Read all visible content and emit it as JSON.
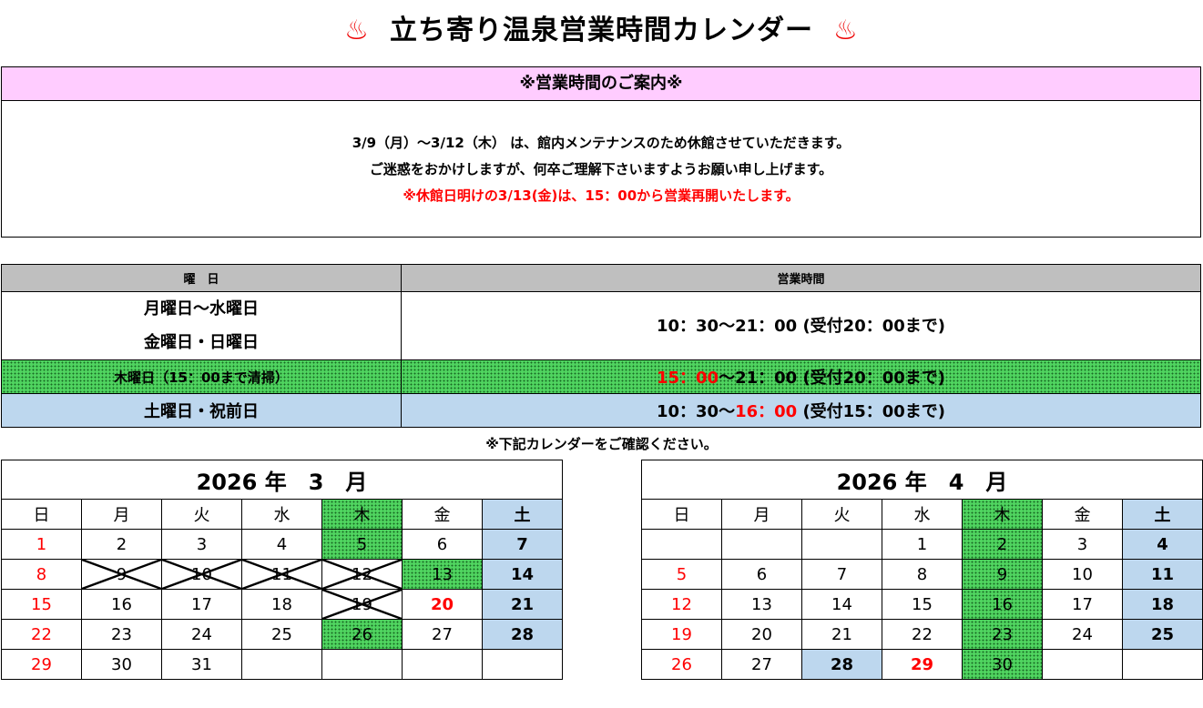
{
  "title": {
    "icon": "hot-spring-icon",
    "glyph": "♨",
    "text": "立ち寄り温泉営業時間カレンダー"
  },
  "notice": {
    "header": "※営業時間のご案内※",
    "line1": "3/9（月）～3/12（木） は、館内メンテナンスのため休館させていただきます。",
    "line2": "ご迷惑をおかけしますが、何卒ご理解下さいますようお願い申し上げます。",
    "line3": "※休館日明けの3/13(金)は、15：00から営業再開いたします。"
  },
  "hours": {
    "col1": "曜　日",
    "col2": "営業時間",
    "row1": {
      "day1": "月曜日～水曜日",
      "day2": "金曜日・日曜日",
      "time": "10：30～21：00 (受付20：00まで)"
    },
    "row2": {
      "day": "木曜日（15：00まで清掃）",
      "time_red": "15：00",
      "time_rest": "～21：00 (受付20：00まで)"
    },
    "row3": {
      "day": "土曜日・祝前日",
      "time_a": "10：30～",
      "time_red": "16：00",
      "time_b": " (受付15：00まで)"
    }
  },
  "note": "※下記カレンダーをご確認ください。",
  "colors": {
    "green": "#4fd35f",
    "blue": "#bdd7ee",
    "pink": "#ffccff",
    "red": "#ff0000"
  },
  "weekdays": [
    "日",
    "月",
    "火",
    "水",
    "木",
    "金",
    "土"
  ],
  "calendars": [
    {
      "title": "2026 年　3　月",
      "weeks": [
        [
          [
            "1",
            "sun"
          ],
          [
            "2",
            ""
          ],
          [
            "3",
            ""
          ],
          [
            "4",
            ""
          ],
          [
            "5",
            "thu"
          ],
          [
            "6",
            ""
          ],
          [
            "7",
            "sat"
          ]
        ],
        [
          [
            "8",
            "sun"
          ],
          [
            "9",
            "x"
          ],
          [
            "10",
            "x"
          ],
          [
            "11",
            "x"
          ],
          [
            "12",
            "x"
          ],
          [
            "13",
            "thu"
          ],
          [
            "14",
            "sat"
          ]
        ],
        [
          [
            "15",
            "sun"
          ],
          [
            "16",
            ""
          ],
          [
            "17",
            ""
          ],
          [
            "18",
            ""
          ],
          [
            "19",
            "x"
          ],
          [
            "20",
            "hol"
          ],
          [
            "21",
            "sat"
          ]
        ],
        [
          [
            "22",
            "sun"
          ],
          [
            "23",
            ""
          ],
          [
            "24",
            ""
          ],
          [
            "25",
            ""
          ],
          [
            "26",
            "thu"
          ],
          [
            "27",
            ""
          ],
          [
            "28",
            "sat"
          ]
        ],
        [
          [
            "29",
            "sun"
          ],
          [
            "30",
            ""
          ],
          [
            "31",
            ""
          ],
          [
            "",
            ""
          ],
          [
            "",
            ""
          ],
          [
            "",
            ""
          ],
          [
            "",
            ""
          ]
        ]
      ]
    },
    {
      "title": "2026 年　4　月",
      "weeks": [
        [
          [
            "",
            ""
          ],
          [
            "",
            ""
          ],
          [
            "",
            ""
          ],
          [
            "1",
            ""
          ],
          [
            "2",
            "thu"
          ],
          [
            "3",
            ""
          ],
          [
            "4",
            "sat"
          ]
        ],
        [
          [
            "5",
            "sun"
          ],
          [
            "6",
            ""
          ],
          [
            "7",
            ""
          ],
          [
            "8",
            ""
          ],
          [
            "9",
            "thu"
          ],
          [
            "10",
            ""
          ],
          [
            "11",
            "sat"
          ]
        ],
        [
          [
            "12",
            "sun"
          ],
          [
            "13",
            ""
          ],
          [
            "14",
            ""
          ],
          [
            "15",
            ""
          ],
          [
            "16",
            "thu"
          ],
          [
            "17",
            ""
          ],
          [
            "18",
            "sat"
          ]
        ],
        [
          [
            "19",
            "sun"
          ],
          [
            "20",
            ""
          ],
          [
            "21",
            ""
          ],
          [
            "22",
            ""
          ],
          [
            "23",
            "thu"
          ],
          [
            "24",
            ""
          ],
          [
            "25",
            "sat"
          ]
        ],
        [
          [
            "26",
            "sun"
          ],
          [
            "27",
            ""
          ],
          [
            "28",
            "sat"
          ],
          [
            "29",
            "hol"
          ],
          [
            "30",
            "thu"
          ],
          [
            "",
            ""
          ],
          [
            "",
            ""
          ]
        ]
      ]
    }
  ]
}
